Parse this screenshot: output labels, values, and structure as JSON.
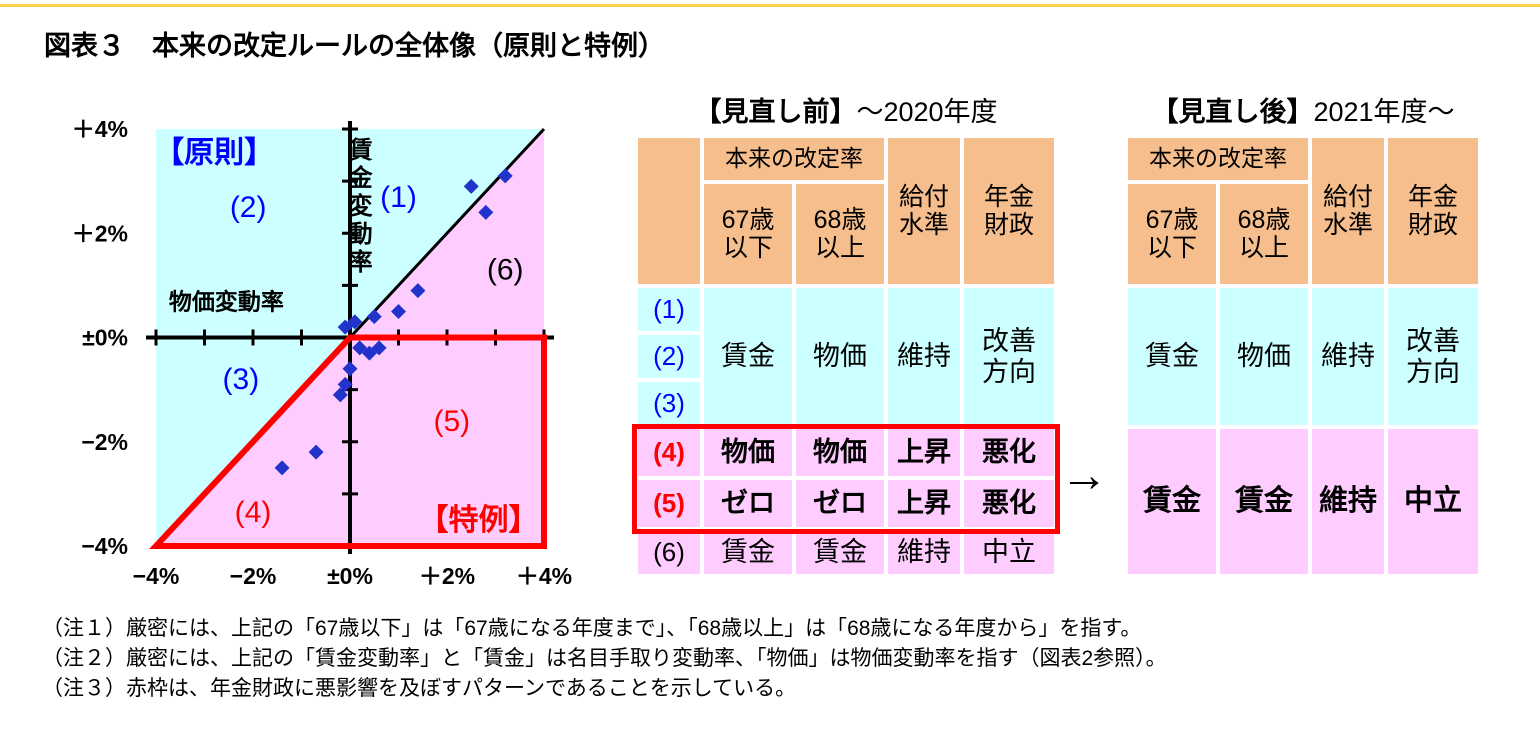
{
  "page": {
    "title": "図表３　本来の改定ルールの全体像（原則と特例）",
    "arrow": "→",
    "notes": [
      "（注１）厳密には、上記の「67歳以下」は「67歳になる年度まで」、「68歳以上」は「68歳になる年度から」を指す。",
      "（注２）厳密には、上記の「賃金変動率」と「賃金」は名目手取り変動率、「物価」は物価変動率を指す（図表2参照）。",
      "（注３）赤枠は、年金財政に悪影響を及ぼすパターンであることを示している。"
    ]
  },
  "colors": {
    "principle_fill": "#CCFFFF",
    "exception_fill": "#FFCCFF",
    "header_fill": "#F6BE8C",
    "label_blue": "#0000FF",
    "highlight_red": "#FF0000",
    "point_blue": "#2233CC"
  },
  "chart_data": {
    "type": "scatter",
    "title": "",
    "xlabel": "物価変動率",
    "ylabel": "賃金変動率",
    "xlim": [
      -4,
      4
    ],
    "ylim": [
      -4,
      4
    ],
    "grid": false,
    "diagonal_reference_line": "y = x",
    "x_tick_values": [
      -4,
      -2,
      0,
      2,
      4
    ],
    "x_tick_labels": [
      "−4%",
      "−2%",
      "±0%",
      "＋2%",
      "＋4%"
    ],
    "y_tick_values": [
      4,
      2,
      0,
      -2,
      -4
    ],
    "y_tick_labels": [
      "＋4%",
      "＋2%",
      "±0%",
      "−2%",
      "−4%"
    ],
    "points": [
      [
        3.2,
        3.1
      ],
      [
        2.5,
        2.9
      ],
      [
        2.8,
        2.4
      ],
      [
        1.4,
        0.9
      ],
      [
        1.0,
        0.5
      ],
      [
        0.5,
        0.4
      ],
      [
        0.1,
        0.3
      ],
      [
        -0.1,
        0.2
      ],
      [
        0.2,
        -0.2
      ],
      [
        0.4,
        -0.3
      ],
      [
        0.6,
        -0.2
      ],
      [
        0.0,
        -0.6
      ],
      [
        -0.1,
        -0.9
      ],
      [
        -0.2,
        -1.1
      ],
      [
        -0.7,
        -2.2
      ],
      [
        -1.4,
        -2.5
      ]
    ],
    "regions": [
      {
        "name": "principle-region",
        "polygon": [
          [
            -4,
            -4
          ],
          [
            -4,
            4
          ],
          [
            4,
            4
          ]
        ],
        "fill": "#CCFFFF"
      },
      {
        "name": "exception-region",
        "polygon": [
          [
            -4,
            -4
          ],
          [
            4,
            4
          ],
          [
            4,
            -4
          ]
        ],
        "fill": "#FFCCFF"
      },
      {
        "name": "exception-outline",
        "polygon": [
          [
            0,
            0
          ],
          [
            4,
            0
          ],
          [
            4,
            -4
          ],
          [
            -4,
            -4
          ]
        ],
        "stroke": "#FF0000"
      }
    ],
    "annotations": [
      {
        "text": "【原則】",
        "x": -2.8,
        "y": 3.55,
        "color": "#0000FF",
        "bold": true,
        "size": 30
      },
      {
        "text": "(2)",
        "x": -2.1,
        "y": 2.5,
        "color": "#0000FF",
        "size": 30
      },
      {
        "text": "(1)",
        "x": 1.0,
        "y": 2.7,
        "color": "#0000FF",
        "size": 30
      },
      {
        "text": "(6)",
        "x": 3.2,
        "y": 1.3,
        "color": "#000000",
        "size": 30
      },
      {
        "text": "(3)",
        "x": -2.25,
        "y": -0.8,
        "color": "#0000FF",
        "size": 30
      },
      {
        "text": "(5)",
        "x": 2.1,
        "y": -1.6,
        "color": "#FF0000",
        "size": 30
      },
      {
        "text": "(4)",
        "x": -2.0,
        "y": -3.35,
        "color": "#FF0000",
        "size": 30
      },
      {
        "text": "【特例】",
        "x": 2.65,
        "y": -3.5,
        "color": "#FF0000",
        "bold": true,
        "size": 30
      },
      {
        "text": "物価変動率",
        "x": -2.55,
        "y": 0.68,
        "color": "#000000",
        "size": 23,
        "weight": 600
      },
      {
        "text": "賃金変動率",
        "x": 0.22,
        "y": 3.6,
        "color": "#000000",
        "size": 24,
        "weight": 600,
        "vertical": true
      }
    ]
  },
  "before_table": {
    "title_bracket": "【見直し前】",
    "title_period": "～2020年度",
    "header": {
      "rate_group": "本来の改定率",
      "col_67": "67歳\n以下",
      "col_68": "68歳\n以上",
      "col_level": "給付\n水準",
      "col_finance": "年金\n財政"
    },
    "rows_123": {
      "labels": [
        "(1)",
        "(2)",
        "(3)"
      ],
      "values": [
        "賃金",
        "物価",
        "維持",
        "改善\n方向"
      ]
    },
    "row_4": {
      "label": "(4)",
      "values": [
        "物価",
        "物価",
        "上昇",
        "悪化"
      ]
    },
    "row_5": {
      "label": "(5)",
      "values": [
        "ゼロ",
        "ゼロ",
        "上昇",
        "悪化"
      ]
    },
    "row_6": {
      "label": "(6)",
      "values": [
        "賃金",
        "賃金",
        "維持",
        "中立"
      ]
    }
  },
  "after_table": {
    "title_bracket": "【見直し後】",
    "title_period": "2021年度～",
    "header": {
      "rate_group": "本来の改定率",
      "col_67": "67歳\n以下",
      "col_68": "68歳\n以上",
      "col_level": "給付\n水準",
      "col_finance": "年金\n財政"
    },
    "row_top": [
      "賃金",
      "物価",
      "維持",
      "改善\n方向"
    ],
    "row_bottom": [
      "賃金",
      "賃金",
      "維持",
      "中立"
    ]
  }
}
